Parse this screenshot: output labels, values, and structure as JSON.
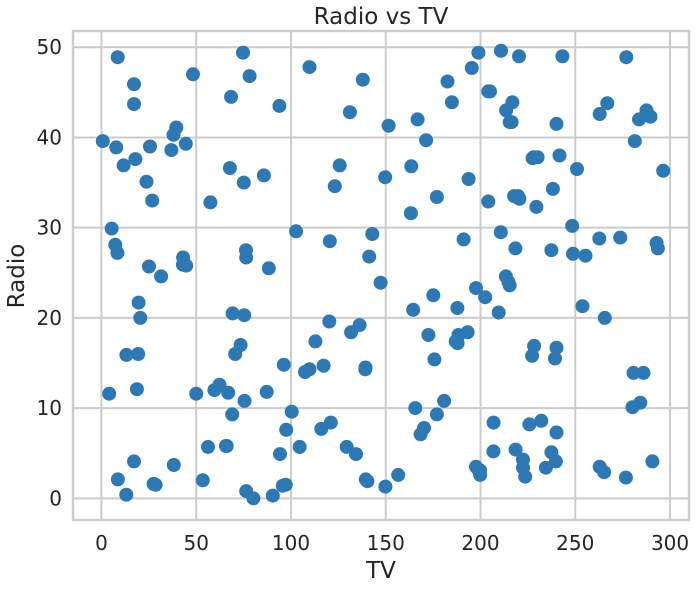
{
  "chart_data": {
    "type": "scatter",
    "title": "Radio vs TV",
    "xlabel": "TV",
    "ylabel": "Radio",
    "xlim": [
      -15,
      310
    ],
    "ylim": [
      -2.4,
      51.8
    ],
    "xticks": [
      0,
      50,
      100,
      150,
      200,
      250,
      300
    ],
    "yticks": [
      0,
      10,
      20,
      30,
      40,
      50
    ],
    "grid": true,
    "color": "#2e78b4",
    "series": [
      {
        "name": "",
        "points": [
          [
            0.7,
            39.6
          ],
          [
            4.1,
            11.6
          ],
          [
            5.4,
            29.9
          ],
          [
            7.3,
            28.1
          ],
          [
            7.8,
            38.9
          ],
          [
            8.4,
            27.2
          ],
          [
            8.6,
            48.9
          ],
          [
            8.7,
            2.1
          ],
          [
            11.7,
            36.9
          ],
          [
            13.1,
            0.4
          ],
          [
            13.2,
            15.9
          ],
          [
            17.2,
            45.9
          ],
          [
            17.2,
            43.7
          ],
          [
            17.2,
            4.1
          ],
          [
            17.9,
            37.6
          ],
          [
            18.7,
            12.1
          ],
          [
            19.4,
            16.0
          ],
          [
            19.6,
            21.7
          ],
          [
            20.5,
            20.0
          ],
          [
            23.8,
            35.1
          ],
          [
            25.1,
            25.7
          ],
          [
            25.6,
            39.0
          ],
          [
            26.8,
            33.0
          ],
          [
            27.5,
            1.6
          ],
          [
            28.6,
            1.5
          ],
          [
            31.5,
            24.6
          ],
          [
            36.9,
            38.6
          ],
          [
            38.0,
            40.3
          ],
          [
            38.2,
            3.7
          ],
          [
            39.5,
            41.1
          ],
          [
            43.0,
            25.9
          ],
          [
            43.1,
            26.7
          ],
          [
            44.5,
            39.3
          ],
          [
            44.7,
            25.8
          ],
          [
            48.3,
            47.0
          ],
          [
            50.0,
            11.6
          ],
          [
            53.5,
            2.0
          ],
          [
            56.2,
            5.7
          ],
          [
            57.5,
            32.8
          ],
          [
            59.6,
            12.0
          ],
          [
            62.3,
            12.6
          ],
          [
            65.7,
            5.8
          ],
          [
            66.1,
            5.8
          ],
          [
            66.9,
            11.7
          ],
          [
            67.8,
            36.6
          ],
          [
            68.4,
            44.5
          ],
          [
            69.0,
            9.3
          ],
          [
            69.2,
            20.5
          ],
          [
            70.6,
            16.0
          ],
          [
            73.4,
            17.0
          ],
          [
            74.7,
            49.4
          ],
          [
            75.1,
            35.0
          ],
          [
            75.3,
            20.3
          ],
          [
            75.5,
            10.8
          ],
          [
            76.3,
            27.5
          ],
          [
            76.4,
            0.8
          ],
          [
            76.4,
            26.7
          ],
          [
            78.2,
            46.8
          ],
          [
            80.2,
            0.0
          ],
          [
            85.7,
            35.8
          ],
          [
            87.2,
            11.8
          ],
          [
            88.3,
            25.5
          ],
          [
            90.4,
            0.3
          ],
          [
            93.9,
            43.5
          ],
          [
            94.2,
            4.9
          ],
          [
            95.7,
            1.4
          ],
          [
            96.2,
            14.8
          ],
          [
            97.2,
            1.5
          ],
          [
            97.5,
            7.6
          ],
          [
            100.4,
            9.6
          ],
          [
            102.7,
            29.6
          ],
          [
            104.6,
            5.7
          ],
          [
            107.4,
            14.0
          ],
          [
            109.8,
            14.3
          ],
          [
            109.8,
            47.8
          ],
          [
            112.9,
            17.4
          ],
          [
            116.0,
            7.7
          ],
          [
            117.2,
            14.7
          ],
          [
            120.2,
            19.6
          ],
          [
            120.5,
            28.5
          ],
          [
            121.0,
            8.4
          ],
          [
            123.1,
            34.6
          ],
          [
            125.7,
            36.9
          ],
          [
            129.4,
            5.7
          ],
          [
            131.1,
            42.8
          ],
          [
            131.7,
            18.4
          ],
          [
            134.3,
            4.9
          ],
          [
            136.2,
            19.2
          ],
          [
            137.9,
            46.4
          ],
          [
            139.2,
            14.3
          ],
          [
            139.3,
            14.5
          ],
          [
            139.5,
            2.1
          ],
          [
            140.3,
            1.9
          ],
          [
            141.3,
            26.8
          ],
          [
            142.9,
            29.3
          ],
          [
            147.3,
            23.9
          ],
          [
            149.7,
            35.6
          ],
          [
            149.8,
            1.3
          ],
          [
            151.5,
            41.3
          ],
          [
            156.6,
            2.6
          ],
          [
            163.3,
            31.6
          ],
          [
            163.5,
            36.8
          ],
          [
            164.5,
            20.9
          ],
          [
            165.6,
            10.0
          ],
          [
            166.8,
            42.0
          ],
          [
            168.4,
            7.1
          ],
          [
            170.2,
            7.8
          ],
          [
            171.3,
            39.7
          ],
          [
            172.5,
            18.1
          ],
          [
            175.1,
            22.5
          ],
          [
            175.7,
            15.4
          ],
          [
            177.0,
            9.3
          ],
          [
            177.0,
            33.4
          ],
          [
            180.8,
            10.8
          ],
          [
            182.6,
            46.2
          ],
          [
            184.9,
            43.9
          ],
          [
            186.9,
            17.4
          ],
          [
            187.8,
            21.1
          ],
          [
            187.9,
            17.2
          ],
          [
            188.4,
            18.1
          ],
          [
            191.1,
            28.7
          ],
          [
            193.2,
            18.4
          ],
          [
            193.7,
            35.4
          ],
          [
            195.4,
            47.7
          ],
          [
            197.6,
            23.3
          ],
          [
            197.6,
            3.5
          ],
          [
            198.9,
            49.4
          ],
          [
            199.1,
            3.1
          ],
          [
            199.8,
            3.1
          ],
          [
            199.8,
            2.6
          ],
          [
            202.5,
            22.3
          ],
          [
            204.1,
            32.9
          ],
          [
            204.1,
            45.1
          ],
          [
            205.0,
            45.1
          ],
          [
            206.8,
            5.2
          ],
          [
            206.9,
            8.4
          ],
          [
            209.6,
            20.6
          ],
          [
            210.7,
            29.5
          ],
          [
            210.8,
            49.6
          ],
          [
            213.4,
            24.6
          ],
          [
            213.5,
            43.0
          ],
          [
            214.7,
            24.0
          ],
          [
            215.4,
            23.6
          ],
          [
            215.4,
            41.7
          ],
          [
            216.4,
            41.7
          ],
          [
            216.8,
            43.9
          ],
          [
            217.7,
            33.5
          ],
          [
            218.4,
            27.7
          ],
          [
            218.5,
            5.4
          ],
          [
            219.8,
            33.5
          ],
          [
            220.3,
            49.0
          ],
          [
            220.5,
            33.2
          ],
          [
            222.4,
            4.3
          ],
          [
            222.4,
            3.4
          ],
          [
            223.6,
            2.4
          ],
          [
            225.8,
            8.2
          ],
          [
            227.2,
            15.8
          ],
          [
            227.5,
            37.7
          ],
          [
            228.0,
            37.8
          ],
          [
            228.3,
            16.9
          ],
          [
            229.5,
            32.3
          ],
          [
            230.1,
            37.8
          ],
          [
            232.1,
            8.6
          ],
          [
            234.5,
            3.4
          ],
          [
            237.4,
            5.1
          ],
          [
            237.4,
            27.5
          ],
          [
            238.2,
            34.3
          ],
          [
            239.3,
            15.5
          ],
          [
            239.8,
            4.1
          ],
          [
            240.1,
            16.7
          ],
          [
            240.1,
            7.3
          ],
          [
            240.1,
            41.5
          ],
          [
            241.7,
            38.0
          ],
          [
            243.2,
            49.0
          ],
          [
            248.4,
            30.2
          ],
          [
            248.8,
            27.1
          ],
          [
            250.9,
            36.5
          ],
          [
            253.8,
            21.3
          ],
          [
            255.4,
            26.9
          ],
          [
            262.7,
            28.8
          ],
          [
            262.9,
            3.5
          ],
          [
            262.9,
            42.6
          ],
          [
            265.2,
            2.9
          ],
          [
            265.6,
            20.0
          ],
          [
            266.9,
            43.8
          ],
          [
            273.7,
            28.9
          ],
          [
            276.7,
            2.3
          ],
          [
            276.9,
            48.9
          ],
          [
            280.2,
            10.1
          ],
          [
            280.7,
            13.9
          ],
          [
            281.4,
            39.6
          ],
          [
            283.6,
            42.0
          ],
          [
            284.3,
            10.6
          ],
          [
            286.0,
            13.9
          ],
          [
            287.6,
            43.0
          ],
          [
            289.7,
            42.3
          ],
          [
            290.7,
            4.1
          ],
          [
            292.9,
            28.3
          ],
          [
            293.6,
            27.7
          ],
          [
            296.4,
            36.3
          ]
        ]
      }
    ]
  }
}
